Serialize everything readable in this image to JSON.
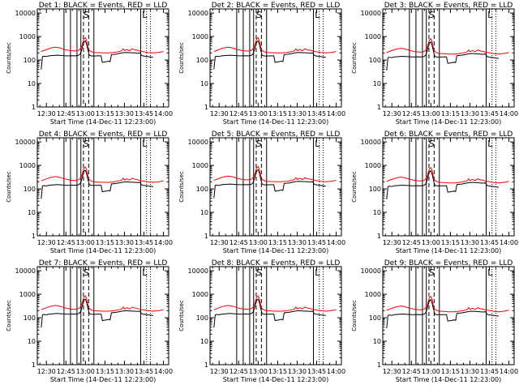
{
  "chart_data": {
    "type": "line",
    "shared": {
      "xlabel": "Start Time (14-Dec-11 12:23:00)",
      "ylabel": "Counts/sec",
      "x_tick_labels": [
        "12:30",
        "12:45",
        "13:00",
        "13:15",
        "13:30",
        "13:45",
        "14:00"
      ],
      "x_ticks_min": [
        30,
        45,
        60,
        75,
        90,
        105,
        120
      ],
      "xlim_min": [
        23,
        124
      ],
      "y_scale": "log",
      "y_tick_labels": [
        "1",
        "10",
        "100",
        "1000",
        "10000"
      ],
      "ylim": [
        1,
        15000
      ],
      "grid": false,
      "legend": "in title",
      "colors": {
        "events": "#000000",
        "lld": "#ff0000"
      },
      "solid_lines_min": [
        43.5,
        48.5,
        53.5,
        56.5,
        66.5,
        102.5
      ],
      "dashed_lines_min": [
        58.5,
        62.5
      ],
      "dotted_lines_min": [
        107,
        110
      ],
      "markers": [
        {
          "text": "S",
          "x_min": 60.5
        },
        {
          "text": "L",
          "x_min": 105.5
        }
      ],
      "series": [
        {
          "name": "Events",
          "color": "#000000",
          "points": [
            [
              26,
              40
            ],
            [
              27,
              140
            ],
            [
              28,
              145
            ],
            [
              30,
              140
            ],
            [
              31,
              145
            ],
            [
              32,
              150
            ],
            [
              35,
              155
            ],
            [
              38,
              160
            ],
            [
              42,
              155
            ],
            [
              45,
              150
            ],
            [
              48,
              150
            ],
            [
              50,
              152
            ],
            [
              53,
              150
            ],
            [
              55,
              160
            ],
            [
              56,
              180
            ],
            [
              57,
              250
            ],
            [
              58,
              400
            ],
            [
              59,
              600
            ],
            [
              60,
              650
            ],
            [
              61,
              450
            ],
            [
              62,
              250
            ],
            [
              63,
              160
            ],
            [
              64,
              150
            ],
            [
              66,
              148
            ],
            [
              70,
              150
            ],
            [
              72,
              150
            ],
            [
              73,
              80
            ],
            [
              76,
              85
            ],
            [
              78,
              90
            ],
            [
              79,
              85
            ],
            [
              80,
              170
            ],
            [
              84,
              180
            ],
            [
              88,
              200
            ],
            [
              91,
              210
            ],
            [
              94,
              205
            ],
            [
              98,
              200
            ],
            [
              100,
              195
            ],
            [
              102,
              200
            ],
            [
              103,
              160
            ],
            [
              104,
              150
            ],
            [
              106,
              145
            ],
            [
              108,
              140
            ],
            [
              110,
              135
            ],
            [
              112,
              130
            ]
          ]
        },
        {
          "name": "LLD",
          "color": "#ff0000",
          "points": [
            [
              26,
              230
            ],
            [
              30,
              280
            ],
            [
              34,
              330
            ],
            [
              37,
              350
            ],
            [
              40,
              330
            ],
            [
              44,
              280
            ],
            [
              48,
              250
            ],
            [
              52,
              240
            ],
            [
              55,
              260
            ],
            [
              57,
              350
            ],
            [
              58,
              550
            ],
            [
              59,
              800
            ],
            [
              60,
              900
            ],
            [
              61,
              650
            ],
            [
              62,
              350
            ],
            [
              63,
              250
            ],
            [
              66,
              210
            ],
            [
              70,
              205
            ],
            [
              74,
              200
            ],
            [
              78,
              200
            ],
            [
              82,
              210
            ],
            [
              86,
              230
            ],
            [
              88,
              250
            ],
            [
              89,
              300
            ],
            [
              90,
              250
            ],
            [
              92,
              280
            ],
            [
              94,
              250
            ],
            [
              96,
              300
            ],
            [
              98,
              270
            ],
            [
              100,
              260
            ],
            [
              102,
              240
            ],
            [
              104,
              230
            ],
            [
              108,
              210
            ],
            [
              112,
              200
            ],
            [
              116,
              210
            ],
            [
              120,
              230
            ]
          ]
        }
      ]
    },
    "panels": [
      {
        "title": "Det 1: BLACK = Events, RED = LLD",
        "scale": 1.0
      },
      {
        "title": "Det 2: BLACK = Events, RED = LLD",
        "scale": 1.0
      },
      {
        "title": "Det 3: BLACK = Events, RED = LLD",
        "scale": 0.9
      },
      {
        "title": "Det 4: BLACK = Events, RED = LLD",
        "scale": 0.95
      },
      {
        "title": "Det 5: BLACK = Events, RED = LLD",
        "scale": 1.0
      },
      {
        "title": "Det 6: BLACK = Events, RED = LLD",
        "scale": 0.9
      },
      {
        "title": "Det 7: BLACK = Events, RED = LLD",
        "scale": 0.95
      },
      {
        "title": "Det 8: BLACK = Events, RED = LLD",
        "scale": 0.95
      },
      {
        "title": "Det 9: BLACK = Events, RED = LLD",
        "scale": 0.9
      }
    ]
  }
}
